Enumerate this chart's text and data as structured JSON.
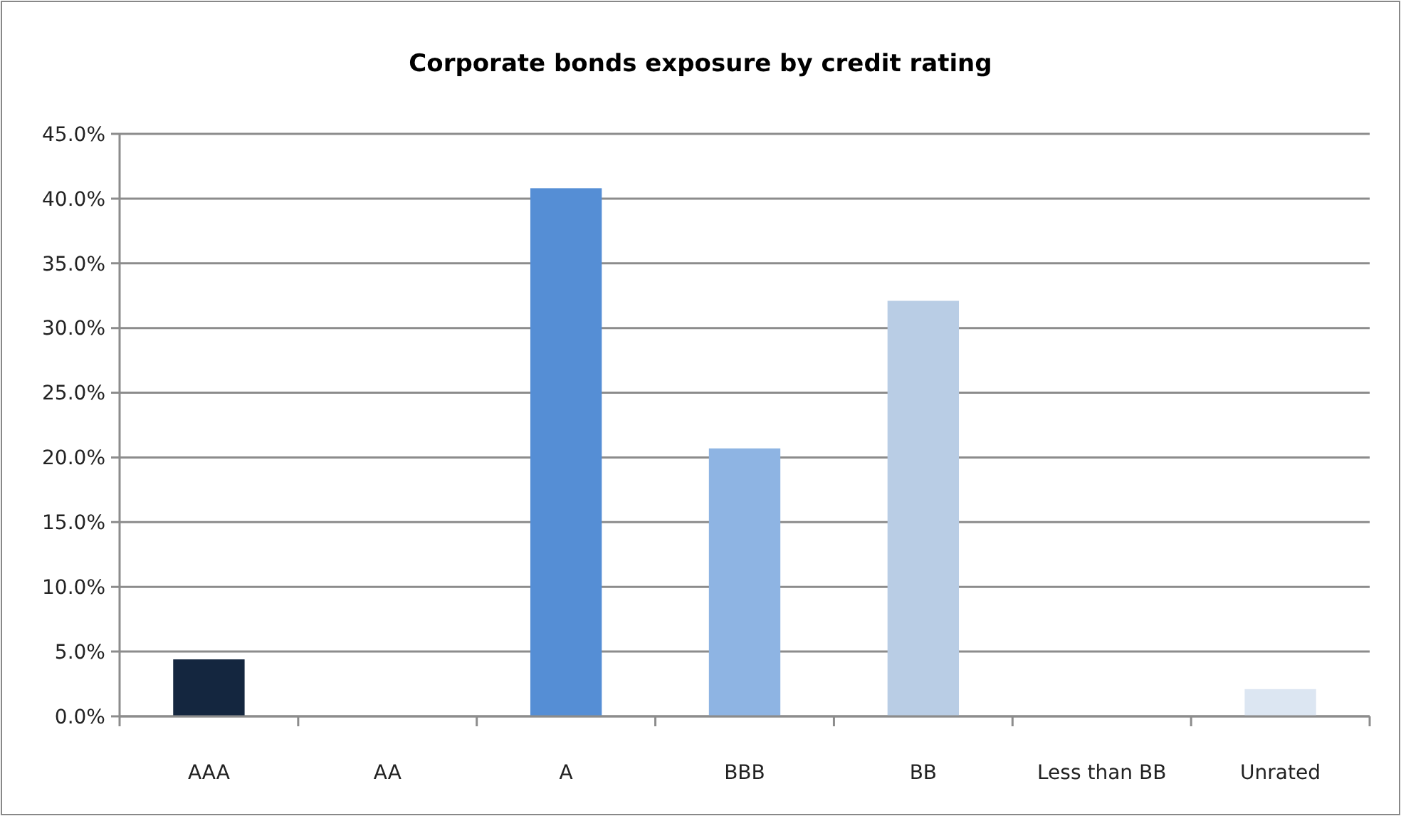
{
  "chart_data": {
    "type": "bar",
    "title": "Corporate bonds exposure by credit rating",
    "categories": [
      "AAA",
      "AA",
      "A",
      "BBB",
      "BB",
      "Less than BB",
      "Unrated"
    ],
    "values": [
      4.4,
      0,
      40.8,
      20.7,
      32.1,
      0,
      2.1
    ],
    "colors": [
      "#14263f",
      "#1f497d",
      "#558ed5",
      "#8eb4e3",
      "#b9cde5",
      "#c6d9f1",
      "#dce6f2"
    ],
    "ylim": [
      0,
      45
    ],
    "yticks": [
      {
        "value": 0,
        "label": "0.0%"
      },
      {
        "value": 5,
        "label": "5.0%"
      },
      {
        "value": 10,
        "label": "10.0%"
      },
      {
        "value": 15,
        "label": "15.0%"
      },
      {
        "value": 20,
        "label": "20.0%"
      },
      {
        "value": 25,
        "label": "25.0%"
      },
      {
        "value": 30,
        "label": "30.0%"
      },
      {
        "value": 35,
        "label": "35.0%"
      },
      {
        "value": 40,
        "label": "40.0%"
      },
      {
        "value": 45,
        "label": "45.0%"
      }
    ],
    "grid": "y"
  }
}
